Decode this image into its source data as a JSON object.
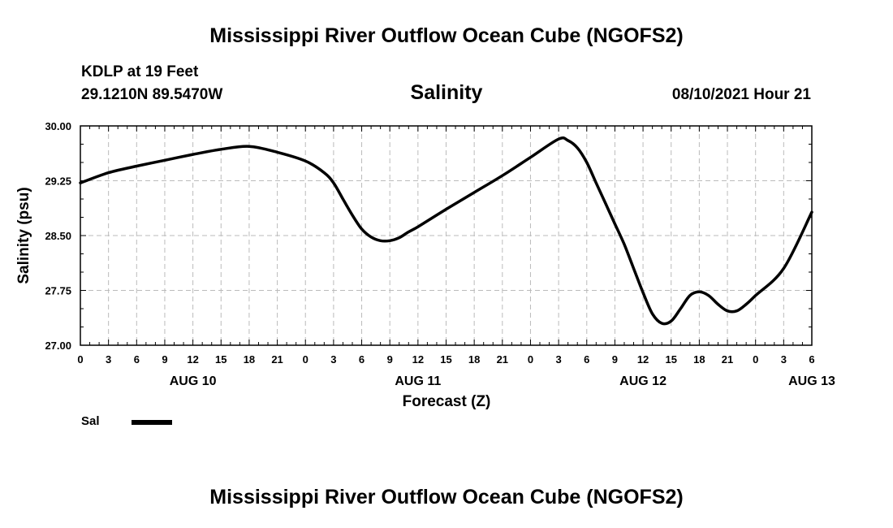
{
  "header": {
    "title": "Mississippi River Outflow Ocean Cube (NGOFS2)",
    "station": "KDLP at 19 Feet",
    "coords": "29.1210N  89.5470W",
    "subtitle": "Salinity",
    "datetime": "08/10/2021 Hour 21"
  },
  "footer": {
    "title": "Mississippi River Outflow Ocean Cube (NGOFS2)"
  },
  "legend": {
    "label": "Sal",
    "color": "#000000"
  },
  "chart_data": {
    "type": "line",
    "title": "Salinity",
    "xlabel": "Forecast (Z)",
    "ylabel": "Salinity (psu)",
    "ylim": [
      27.0,
      30.0
    ],
    "yticks": [
      "27.00",
      "27.75",
      "28.50",
      "29.25",
      "30.00"
    ],
    "xlim_hours": [
      0,
      78
    ],
    "xticks": [
      "0",
      "3",
      "6",
      "9",
      "12",
      "15",
      "18",
      "21",
      "0",
      "3",
      "6",
      "9",
      "12",
      "15",
      "18",
      "21",
      "0",
      "3",
      "6",
      "9",
      "12",
      "15",
      "18",
      "21",
      "0",
      "3",
      "6"
    ],
    "day_labels": [
      {
        "hour": 12,
        "label": "AUG 10"
      },
      {
        "hour": 36,
        "label": "AUG 11"
      },
      {
        "hour": 60,
        "label": "AUG 12"
      },
      {
        "hour": 78,
        "label": "AUG 13"
      }
    ],
    "grid": true,
    "series": [
      {
        "name": "Sal",
        "hours": [
          0,
          3,
          6,
          9,
          12,
          15,
          18,
          21,
          24,
          26,
          27,
          28,
          29,
          30,
          31,
          32,
          33,
          34,
          35,
          36,
          39,
          42,
          45,
          48,
          51,
          52,
          53,
          54,
          55,
          56,
          57,
          58,
          59,
          60,
          61,
          62,
          63,
          64,
          65,
          66,
          67,
          68,
          69,
          70,
          71,
          72,
          75,
          78
        ],
        "values": [
          29.22,
          29.36,
          29.45,
          29.53,
          29.61,
          29.68,
          29.72,
          29.64,
          29.52,
          29.36,
          29.22,
          29.0,
          28.78,
          28.59,
          28.48,
          28.43,
          28.43,
          28.47,
          28.55,
          28.62,
          28.86,
          29.09,
          29.32,
          29.57,
          29.82,
          29.8,
          29.7,
          29.5,
          29.22,
          28.94,
          28.66,
          28.38,
          28.05,
          27.72,
          27.43,
          27.3,
          27.33,
          27.5,
          27.68,
          27.73,
          27.68,
          27.56,
          27.47,
          27.47,
          27.56,
          27.68,
          28.05,
          28.82
        ]
      }
    ]
  }
}
